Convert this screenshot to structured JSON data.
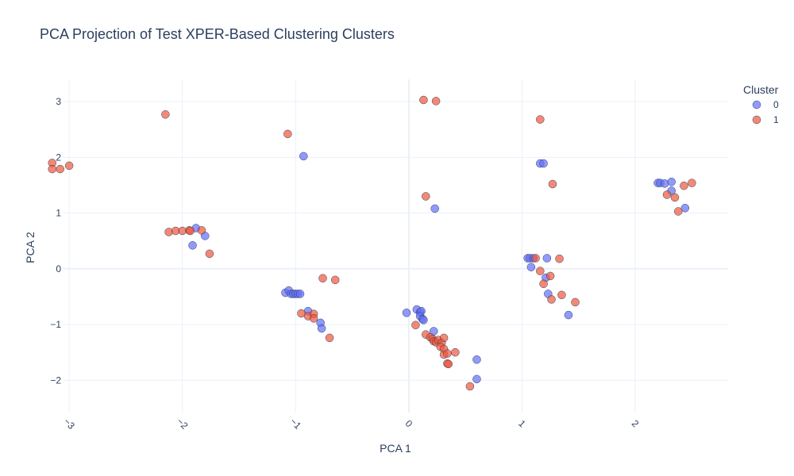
{
  "chart_data": {
    "type": "scatter",
    "title": "PCA Projection of Test XPER-Based Clustering Clusters",
    "xlabel": "PCA 1",
    "ylabel": "PCA 2",
    "xlim": [
      -3.05,
      2.82
    ],
    "ylim": [
      -2.58,
      3.4
    ],
    "x_ticks": [
      -3,
      -2,
      -1,
      0,
      1,
      2
    ],
    "x_tick_labels": [
      "−3",
      "−2",
      "−1",
      "0",
      "1",
      "2"
    ],
    "y_ticks": [
      -2,
      -1,
      0,
      1,
      2,
      3
    ],
    "y_tick_labels": [
      "−2",
      "−1",
      "0",
      "1",
      "2",
      "3"
    ],
    "grid": true,
    "legend": {
      "title": "Cluster",
      "placement": "top-right"
    },
    "colors": {
      "0": "#636efa",
      "1": "#ef553b",
      "grid": "#ebf0f8",
      "zeroline": "#ebf0f8",
      "marker_outline": "#2a3f5f"
    },
    "series": [
      {
        "name": "0",
        "color": "#636efa",
        "points": [
          [
            -0.93,
            2.02
          ],
          [
            0.23,
            1.08
          ],
          [
            1.16,
            1.89
          ],
          [
            1.19,
            1.89
          ],
          [
            2.2,
            1.54
          ],
          [
            2.22,
            1.54
          ],
          [
            2.26,
            1.53
          ],
          [
            2.32,
            1.56
          ],
          [
            2.32,
            1.4
          ],
          [
            2.44,
            1.09
          ],
          [
            -1.88,
            0.73
          ],
          [
            -1.8,
            0.59
          ],
          [
            -1.91,
            0.42
          ],
          [
            1.05,
            0.19
          ],
          [
            1.07,
            0.19
          ],
          [
            1.1,
            0.19
          ],
          [
            1.22,
            0.19
          ],
          [
            1.08,
            0.03
          ],
          [
            1.21,
            -0.16
          ],
          [
            1.23,
            -0.45
          ],
          [
            1.41,
            -0.83
          ],
          [
            -1.09,
            -0.43
          ],
          [
            -1.06,
            -0.39
          ],
          [
            -1.04,
            -0.45
          ],
          [
            -1.02,
            -0.45
          ],
          [
            -1.0,
            -0.45
          ],
          [
            -0.98,
            -0.45
          ],
          [
            -0.96,
            -0.45
          ],
          [
            -0.89,
            -0.76
          ],
          [
            -0.78,
            -0.97
          ],
          [
            -0.77,
            -1.07
          ],
          [
            -0.02,
            -0.79
          ],
          [
            0.07,
            -0.73
          ],
          [
            0.1,
            -0.78
          ],
          [
            0.11,
            -0.76
          ],
          [
            0.1,
            -0.85
          ],
          [
            0.12,
            -0.9
          ],
          [
            0.13,
            -0.92
          ],
          [
            0.22,
            -1.12
          ],
          [
            0.6,
            -1.63
          ],
          [
            0.6,
            -1.98
          ]
        ]
      },
      {
        "name": "1",
        "color": "#ef553b",
        "points": [
          [
            -3.15,
            1.9
          ],
          [
            -3.15,
            1.79
          ],
          [
            -3.08,
            1.79
          ],
          [
            -3.0,
            1.85
          ],
          [
            -2.15,
            2.77
          ],
          [
            -1.07,
            2.42
          ],
          [
            0.13,
            3.03
          ],
          [
            0.24,
            3.01
          ],
          [
            1.16,
            2.68
          ],
          [
            0.15,
            1.3
          ],
          [
            1.27,
            1.52
          ],
          [
            2.28,
            1.33
          ],
          [
            2.35,
            1.28
          ],
          [
            2.38,
            1.03
          ],
          [
            2.43,
            1.49
          ],
          [
            2.5,
            1.54
          ],
          [
            -2.12,
            0.66
          ],
          [
            -2.06,
            0.68
          ],
          [
            -2.0,
            0.68
          ],
          [
            -1.94,
            0.69
          ],
          [
            -1.93,
            0.68
          ],
          [
            -1.83,
            0.69
          ],
          [
            -1.76,
            0.27
          ],
          [
            1.12,
            0.19
          ],
          [
            1.33,
            0.18
          ],
          [
            1.16,
            -0.04
          ],
          [
            1.25,
            -0.13
          ],
          [
            1.19,
            -0.27
          ],
          [
            1.26,
            -0.55
          ],
          [
            1.35,
            -0.47
          ],
          [
            1.47,
            -0.6
          ],
          [
            -0.76,
            -0.17
          ],
          [
            -0.65,
            -0.2
          ],
          [
            -0.95,
            -0.8
          ],
          [
            -0.89,
            -0.85
          ],
          [
            -0.84,
            -0.81
          ],
          [
            -0.84,
            -0.89
          ],
          [
            -0.7,
            -1.24
          ],
          [
            0.06,
            -1.01
          ],
          [
            0.15,
            -1.18
          ],
          [
            0.19,
            -1.23
          ],
          [
            0.21,
            -1.26
          ],
          [
            0.22,
            -1.3
          ],
          [
            0.24,
            -1.32
          ],
          [
            0.26,
            -1.28
          ],
          [
            0.29,
            -1.33
          ],
          [
            0.31,
            -1.24
          ],
          [
            0.28,
            -1.4
          ],
          [
            0.31,
            -1.44
          ],
          [
            0.31,
            -1.54
          ],
          [
            0.34,
            -1.52
          ],
          [
            0.34,
            -1.7
          ],
          [
            0.35,
            -1.71
          ],
          [
            0.41,
            -1.5
          ],
          [
            0.54,
            -2.11
          ]
        ]
      }
    ]
  }
}
